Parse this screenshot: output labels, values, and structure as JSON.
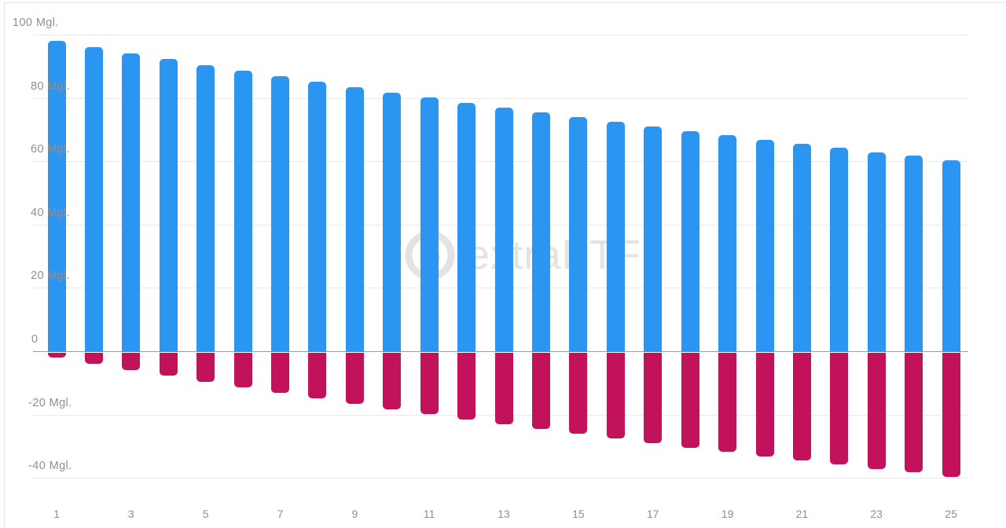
{
  "watermark": {
    "text": "extraETF",
    "logo": "extraetf-ring-logo"
  },
  "colors": {
    "bar_positive": "#2B96F1",
    "bar_negative": "#C2125C",
    "gridline": "#e9e9e9",
    "zero_line": "#9d9d9d",
    "axis_label": "#8f8f8f",
    "watermark": "#e3e3e3",
    "card_border": "#e5e5e5",
    "background": "#ffffff"
  },
  "chart_data": {
    "type": "bar",
    "title": "",
    "xlabel": "",
    "ylabel": "",
    "unit": "Mgl.",
    "grid": true,
    "legend": false,
    "ylim": [
      -40,
      100
    ],
    "categories": [
      1,
      2,
      3,
      4,
      5,
      6,
      7,
      8,
      9,
      10,
      11,
      12,
      13,
      14,
      15,
      16,
      17,
      18,
      19,
      20,
      21,
      22,
      23,
      24,
      25
    ],
    "xtick_labels": [
      "1",
      "3",
      "5",
      "7",
      "9",
      "11",
      "13",
      "15",
      "17",
      "19",
      "21",
      "23",
      "25"
    ],
    "yticks": [
      {
        "value": 100,
        "label": "100 Mgl."
      },
      {
        "value": 80,
        "label": "80 Mgl."
      },
      {
        "value": 60,
        "label": "60 Mgl."
      },
      {
        "value": 40,
        "label": "40 Mgl."
      },
      {
        "value": 20,
        "label": "20 Mgl."
      },
      {
        "value": 0,
        "label": "0"
      },
      {
        "value": -20,
        "label": "-20 Mgl."
      },
      {
        "value": -40,
        "label": "-40 Mgl."
      }
    ],
    "series": [
      {
        "name": "blue",
        "color": "#2B96F1",
        "values": [
          98.0,
          96.0,
          94.1,
          92.2,
          90.4,
          88.6,
          86.8,
          85.1,
          83.4,
          81.7,
          80.1,
          78.5,
          76.9,
          75.4,
          73.9,
          72.4,
          71.0,
          69.6,
          68.2,
          66.8,
          65.5,
          64.2,
          62.9,
          61.7,
          60.4
        ]
      },
      {
        "name": "pink",
        "color": "#C2125C",
        "values": [
          -2.0,
          -4.0,
          -5.9,
          -7.8,
          -9.6,
          -11.4,
          -13.2,
          -14.9,
          -16.6,
          -18.3,
          -19.9,
          -21.5,
          -23.1,
          -24.6,
          -26.1,
          -27.6,
          -29.0,
          -30.4,
          -31.8,
          -33.2,
          -34.5,
          -35.8,
          -37.1,
          -38.3,
          -39.6
        ]
      }
    ]
  }
}
